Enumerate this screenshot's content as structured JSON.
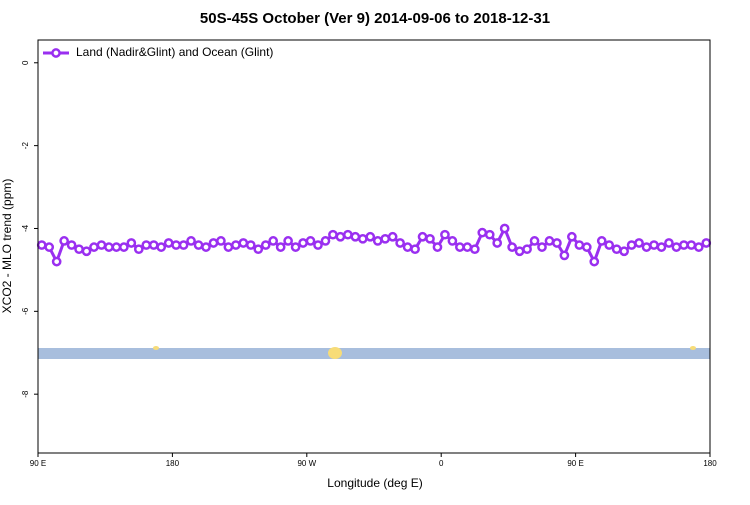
{
  "chart_data": {
    "type": "line",
    "title": "50S-45S October (Ver 9)   2014-09-06 to 2018-12-31",
    "x_label": "Longitude (deg E)",
    "y_label": "XCO2 - MLO trend (ppm)",
    "legend_position": "top-left",
    "xlim": [
      90,
      540
    ],
    "ylim": [
      -9.42,
      0.55
    ],
    "xticks": [
      {
        "value": 90,
        "label": "90 E"
      },
      180,
      {
        "value": 270,
        "label": "90 W"
      },
      {
        "value": 360,
        "label": "0"
      },
      {
        "value": 450,
        "label": "90 E"
      },
      {
        "value": 540,
        "label": "180"
      }
    ],
    "yticks": [
      0,
      -2,
      -4,
      -6,
      -8
    ],
    "x": [
      92.5,
      97.5,
      102.5,
      107.5,
      112.5,
      117.5,
      122.5,
      127.5,
      132.5,
      137.5,
      142.5,
      147.5,
      152.5,
      157.5,
      162.5,
      167.5,
      172.5,
      177.5,
      182.5,
      187.5,
      192.5,
      197.5,
      202.5,
      207.5,
      212.5,
      217.5,
      222.5,
      227.5,
      232.5,
      237.5,
      242.5,
      247.5,
      252.5,
      257.5,
      262.5,
      267.5,
      272.5,
      277.5,
      282.5,
      287.5,
      292.5,
      297.5,
      302.5,
      307.5,
      312.5,
      317.5,
      322.5,
      327.5,
      332.5,
      337.5,
      342.5,
      347.5,
      352.5,
      357.5,
      362.5,
      367.5,
      372.5,
      377.5,
      382.5,
      387.5,
      392.5,
      397.5,
      402.5,
      407.5,
      412.5,
      417.5,
      422.5,
      427.5,
      432.5,
      437.5,
      442.5,
      447.5,
      452.5,
      457.5,
      462.5,
      467.5,
      472.5,
      477.5,
      482.5,
      487.5,
      492.5,
      497.5,
      502.5,
      507.5,
      512.5,
      517.5,
      522.5,
      527.5,
      532.5,
      537.5
    ],
    "series": [
      {
        "name": "Land (Nadir&Glint) and Ocean (Glint)",
        "color": "#9a2ff0",
        "values": [
          -4.4,
          -4.45,
          -4.8,
          -4.3,
          -4.4,
          -4.5,
          -4.55,
          -4.45,
          -4.4,
          -4.45,
          -4.45,
          -4.45,
          -4.35,
          -4.5,
          -4.4,
          -4.4,
          -4.45,
          -4.35,
          -4.4,
          -4.4,
          -4.3,
          -4.4,
          -4.45,
          -4.35,
          -4.3,
          -4.45,
          -4.4,
          -4.35,
          -4.4,
          -4.5,
          -4.4,
          -4.3,
          -4.45,
          -4.3,
          -4.45,
          -4.35,
          -4.3,
          -4.4,
          -4.3,
          -4.15,
          -4.2,
          -4.15,
          -4.2,
          -4.25,
          -4.2,
          -4.3,
          -4.25,
          -4.2,
          -4.35,
          -4.45,
          -4.5,
          -4.2,
          -4.25,
          -4.45,
          -4.15,
          -4.3,
          -4.45,
          -4.45,
          -4.5,
          -4.1,
          -4.15,
          -4.35,
          -4.0,
          -4.45,
          -4.55,
          -4.5,
          -4.3,
          -4.45,
          -4.3,
          -4.35,
          -4.65,
          -4.2,
          -4.4,
          -4.45,
          -4.8,
          -4.3,
          -4.4,
          -4.5,
          -4.55,
          -4.4,
          -4.35,
          -4.45,
          -4.4,
          -4.45,
          -4.35,
          -4.45,
          -4.4,
          -4.4,
          -4.45,
          -4.35
        ]
      }
    ]
  }
}
